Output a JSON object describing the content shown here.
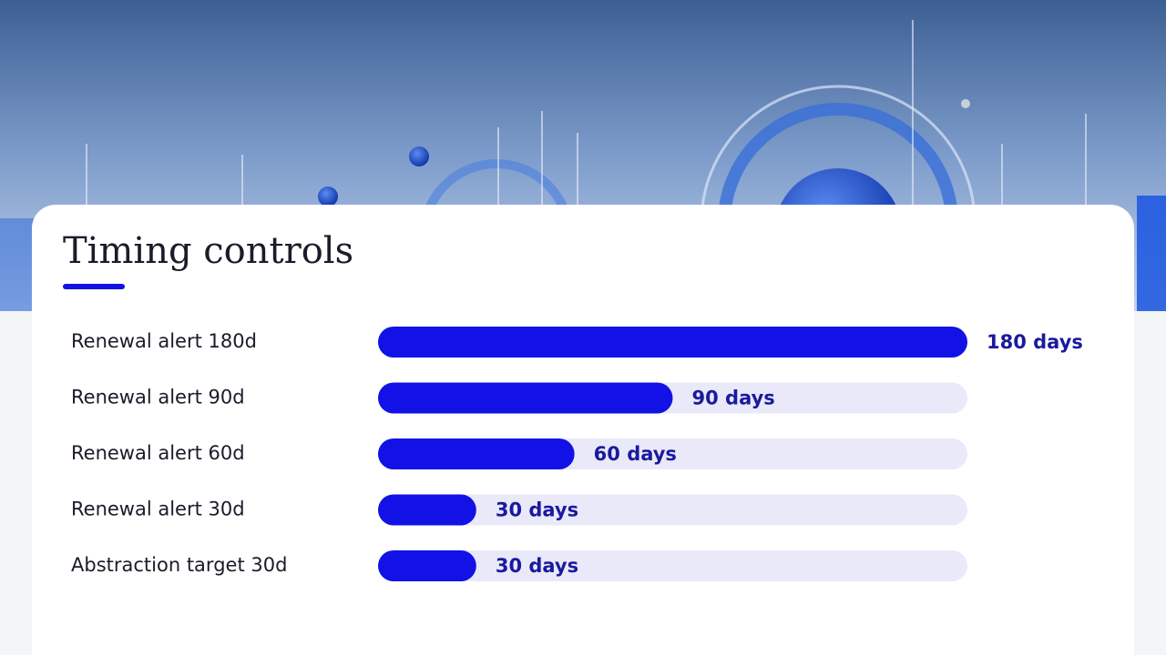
{
  "chart_data": {
    "type": "hbar",
    "title": "Timing controls",
    "categories": [
      "Renewal alert 180d",
      "Renewal alert 90d",
      "Renewal alert 60d",
      "Renewal alert 30d",
      "Abstraction target 30d"
    ],
    "values": [
      180,
      90,
      60,
      30,
      30
    ],
    "value_labels": [
      "180 days",
      "90 days",
      "60 days",
      "30 days",
      "30 days"
    ],
    "color": "#1212e6"
  }
}
